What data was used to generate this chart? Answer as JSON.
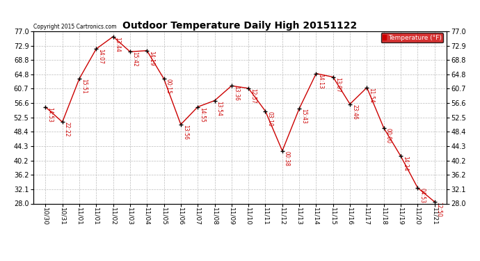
{
  "title": "Outdoor Temperature Daily High 20151122",
  "copyright": "Copyright 2015 Cartronics.com",
  "legend_label": "Temperature (°F)",
  "x_labels": [
    "10/30",
    "10/31",
    "11/01",
    "11/01",
    "11/02",
    "11/03",
    "11/04",
    "11/05",
    "11/06",
    "11/07",
    "11/08",
    "11/09",
    "11/10",
    "11/11",
    "11/12",
    "11/13",
    "11/14",
    "11/15",
    "11/16",
    "11/17",
    "11/18",
    "11/19",
    "11/20",
    "11/21"
  ],
  "y_values": [
    55.5,
    51.2,
    63.5,
    72.0,
    75.5,
    71.2,
    71.5,
    63.5,
    50.5,
    55.5,
    57.3,
    61.5,
    60.8,
    54.3,
    43.0,
    55.0,
    65.0,
    64.0,
    56.3,
    61.0,
    49.5,
    41.5,
    32.5,
    28.5
  ],
  "annotations": [
    "14:53",
    "22:22",
    "15:51",
    "14:07",
    "13:44",
    "15:42",
    "14:19",
    "00:15",
    "13:56",
    "14:55",
    "13:54",
    "13:36",
    "12:57",
    "03:10",
    "00:38",
    "15:43",
    "14:13",
    "13:07",
    "23:46",
    "11:54",
    "00:00",
    "14:24",
    "04:53",
    "12:50"
  ],
  "ylim_min": 28.0,
  "ylim_max": 77.0,
  "yticks": [
    28.0,
    32.1,
    36.2,
    40.2,
    44.3,
    48.4,
    52.5,
    56.6,
    60.7,
    64.8,
    68.8,
    72.9,
    77.0
  ],
  "line_color": "#cc0000",
  "marker_color": "#000000",
  "bg_color": "#ffffff",
  "grid_color": "#bbbbbb",
  "annotation_color": "#cc0000",
  "legend_bg": "#cc0000",
  "legend_text": "#ffffff",
  "border_color": "#000000"
}
